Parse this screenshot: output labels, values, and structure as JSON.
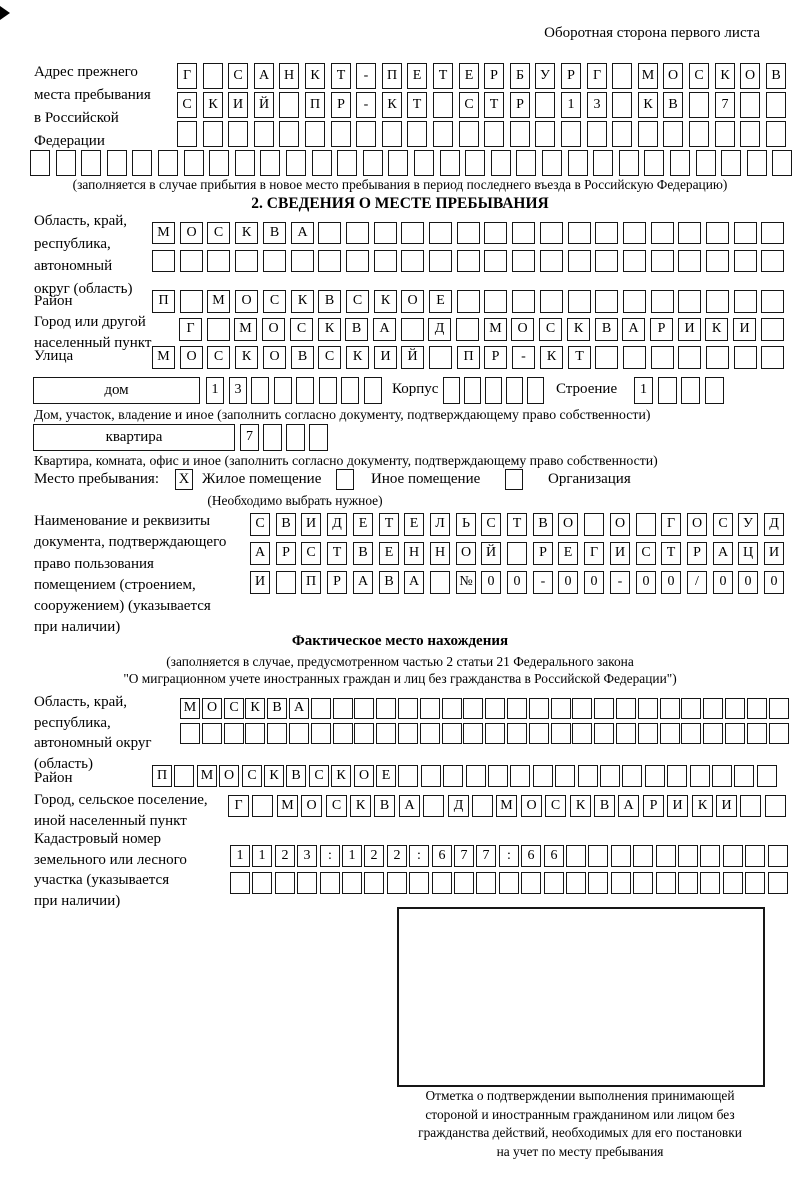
{
  "page": {
    "top_right_note": "Оборотная сторона первого листа"
  },
  "prev_address": {
    "label": "Адрес прежнего\nместа пребывания\nв Российской\nФедерации",
    "note": "(заполняется в случае прибытия в новое место пребывания в период последнего въезда в Российскую Федерацию)"
  },
  "section_stay": {
    "title": "2. СВЕДЕНИЯ О МЕСТЕ ПРЕБЫВАНИЯ",
    "region_label": "Область, край,\nреспублика,\nавтономный\nокруг (область)",
    "district_label": "Район",
    "city_label": "Город или другой\nнаселенный пункт",
    "street_label": "Улица",
    "house_label": "дом",
    "korpus_label": "Корпус",
    "stroenie_label": "Строение",
    "house_note": "Дом, участок, владение и иное (заполнить согласно документу, подтверждающему право собственности)",
    "apartment_label": "квартира",
    "apartment_note": "Квартира, комната, офис и иное (заполнить согласно документу, подтверждающему право собственности)",
    "place_type_label": "Место пребывания:",
    "place_options": [
      "Жилое помещение",
      "Иное помещение",
      "Организация"
    ],
    "place_selected_mark": "X",
    "place_note": "(Необходимо выбрать нужное)",
    "doc_label": "Наименование и реквизиты\nдокумента, подтверждающего\nправо пользования\nпомещением (строением,\nсооружением) (указывается\nпри наличии)"
  },
  "section_fact": {
    "title": "Фактическое место нахождения",
    "note_line1": "(заполняется в случае, предусмотренном частью 2 статьи 21 Федерального закона",
    "note_line2": "\"О миграционном учете иностранных граждан и лиц без гражданства в Российской Федерации\")",
    "region_label": "Область, край,\nреспублика,\nавтономный округ\n(область)",
    "district_label": "Район",
    "city_label": "Город, сельское поселение,\nиной населенный пункт",
    "cadastre_label": "Кадастровый номер\nземельного или лесного\nучастка (указывается\nпри наличии)"
  },
  "stamp": {
    "caption": "Отметка о подтверждении выполнения принимающей\nстороной и иностранным гражданином или лицом без\nгражданства действий, необходимых для его постановки\nна учет по месту пребывания"
  },
  "box_rows": {
    "prev_address_1": "Г САНКТ-ПЕТЕРБУРГ МОСКОВ",
    "prev_address_2": "СКИЙ ПР-КТ СТР 13 КВ 7",
    "prev_address_3": "",
    "prev_address_4": "",
    "stay_region_1": "МОСКВА",
    "stay_region_2": "",
    "stay_district": "П МОСКВСКОЕ",
    "stay_city": "Г МОСКВА Д МОСКВАРИКИ",
    "stay_street": "МОСКОВСКИЙ ПР-КТ",
    "house_number": "13",
    "korpus": "",
    "stroenie": "1",
    "apartment_number": "7",
    "doc_1": "СВИДЕТЕЛЬСТВО О ГОСУД",
    "doc_2": "АРСТВЕННОЙ РЕГИСТРАЦИ",
    "doc_3": "И ПРАВА №00-00-00/000",
    "fact_region_1": "МОСКВА",
    "fact_region_2": "",
    "fact_district": "П МОСКВСКОЕ",
    "fact_city": "Г МОСКВА Д МОСКВАРИКИ",
    "fact_cadastre_1": "1123:122:677:66",
    "fact_cadastre_2": ""
  }
}
